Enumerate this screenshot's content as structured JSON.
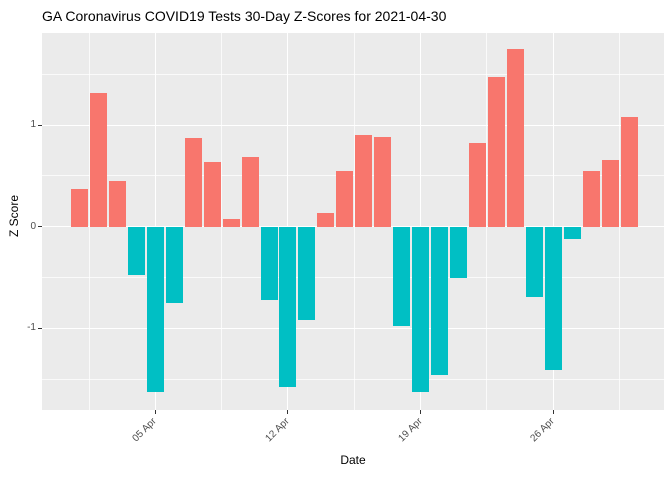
{
  "chart_data": {
    "type": "bar",
    "title": "GA Coronavirus COVID19 Tests 30-Day Z-Scores for 2021-04-30",
    "xlabel": "Date",
    "ylabel": "Z Score",
    "x": [
      "2021-04-01",
      "2021-04-02",
      "2021-04-03",
      "2021-04-04",
      "2021-04-05",
      "2021-04-06",
      "2021-04-07",
      "2021-04-08",
      "2021-04-09",
      "2021-04-10",
      "2021-04-11",
      "2021-04-12",
      "2021-04-13",
      "2021-04-14",
      "2021-04-15",
      "2021-04-16",
      "2021-04-17",
      "2021-04-18",
      "2021-04-19",
      "2021-04-20",
      "2021-04-21",
      "2021-04-22",
      "2021-04-23",
      "2021-04-24",
      "2021-04-25",
      "2021-04-26",
      "2021-04-27",
      "2021-04-28",
      "2021-04-29",
      "2021-04-30"
    ],
    "values": [
      0.37,
      1.32,
      0.45,
      -0.48,
      -1.63,
      -0.75,
      0.87,
      0.64,
      0.08,
      0.69,
      -0.72,
      -1.58,
      -0.92,
      0.14,
      0.55,
      0.9,
      0.88,
      -0.98,
      -1.63,
      -1.46,
      -0.5,
      0.82,
      1.47,
      1.75,
      -0.69,
      -1.41,
      -0.12,
      0.55,
      0.66,
      1.08
    ],
    "x_tick_labels": [
      "05 Apr",
      "12 Apr",
      "19 Apr",
      "26 Apr"
    ],
    "x_tick_days": [
      5,
      12,
      19,
      26
    ],
    "x_minor_grid_days": [
      1.5,
      8.5,
      15.5,
      22.5,
      29.5
    ],
    "y_ticks": [
      1,
      0,
      -1
    ],
    "y_minor_grid": [
      1.5,
      0.5,
      -0.5,
      -1.5
    ],
    "ylim": [
      -1.8,
      1.91
    ],
    "grid": "on",
    "legend": "none",
    "colors": {
      "positive_bar": "#F8766D",
      "negative_bar": "#00BFC4",
      "panel_background": "#EBEBEB",
      "gridline": "#FFFFFF",
      "tick_label": "#4D4D4D",
      "tick_mark": "#333333",
      "text": "#000000"
    }
  }
}
